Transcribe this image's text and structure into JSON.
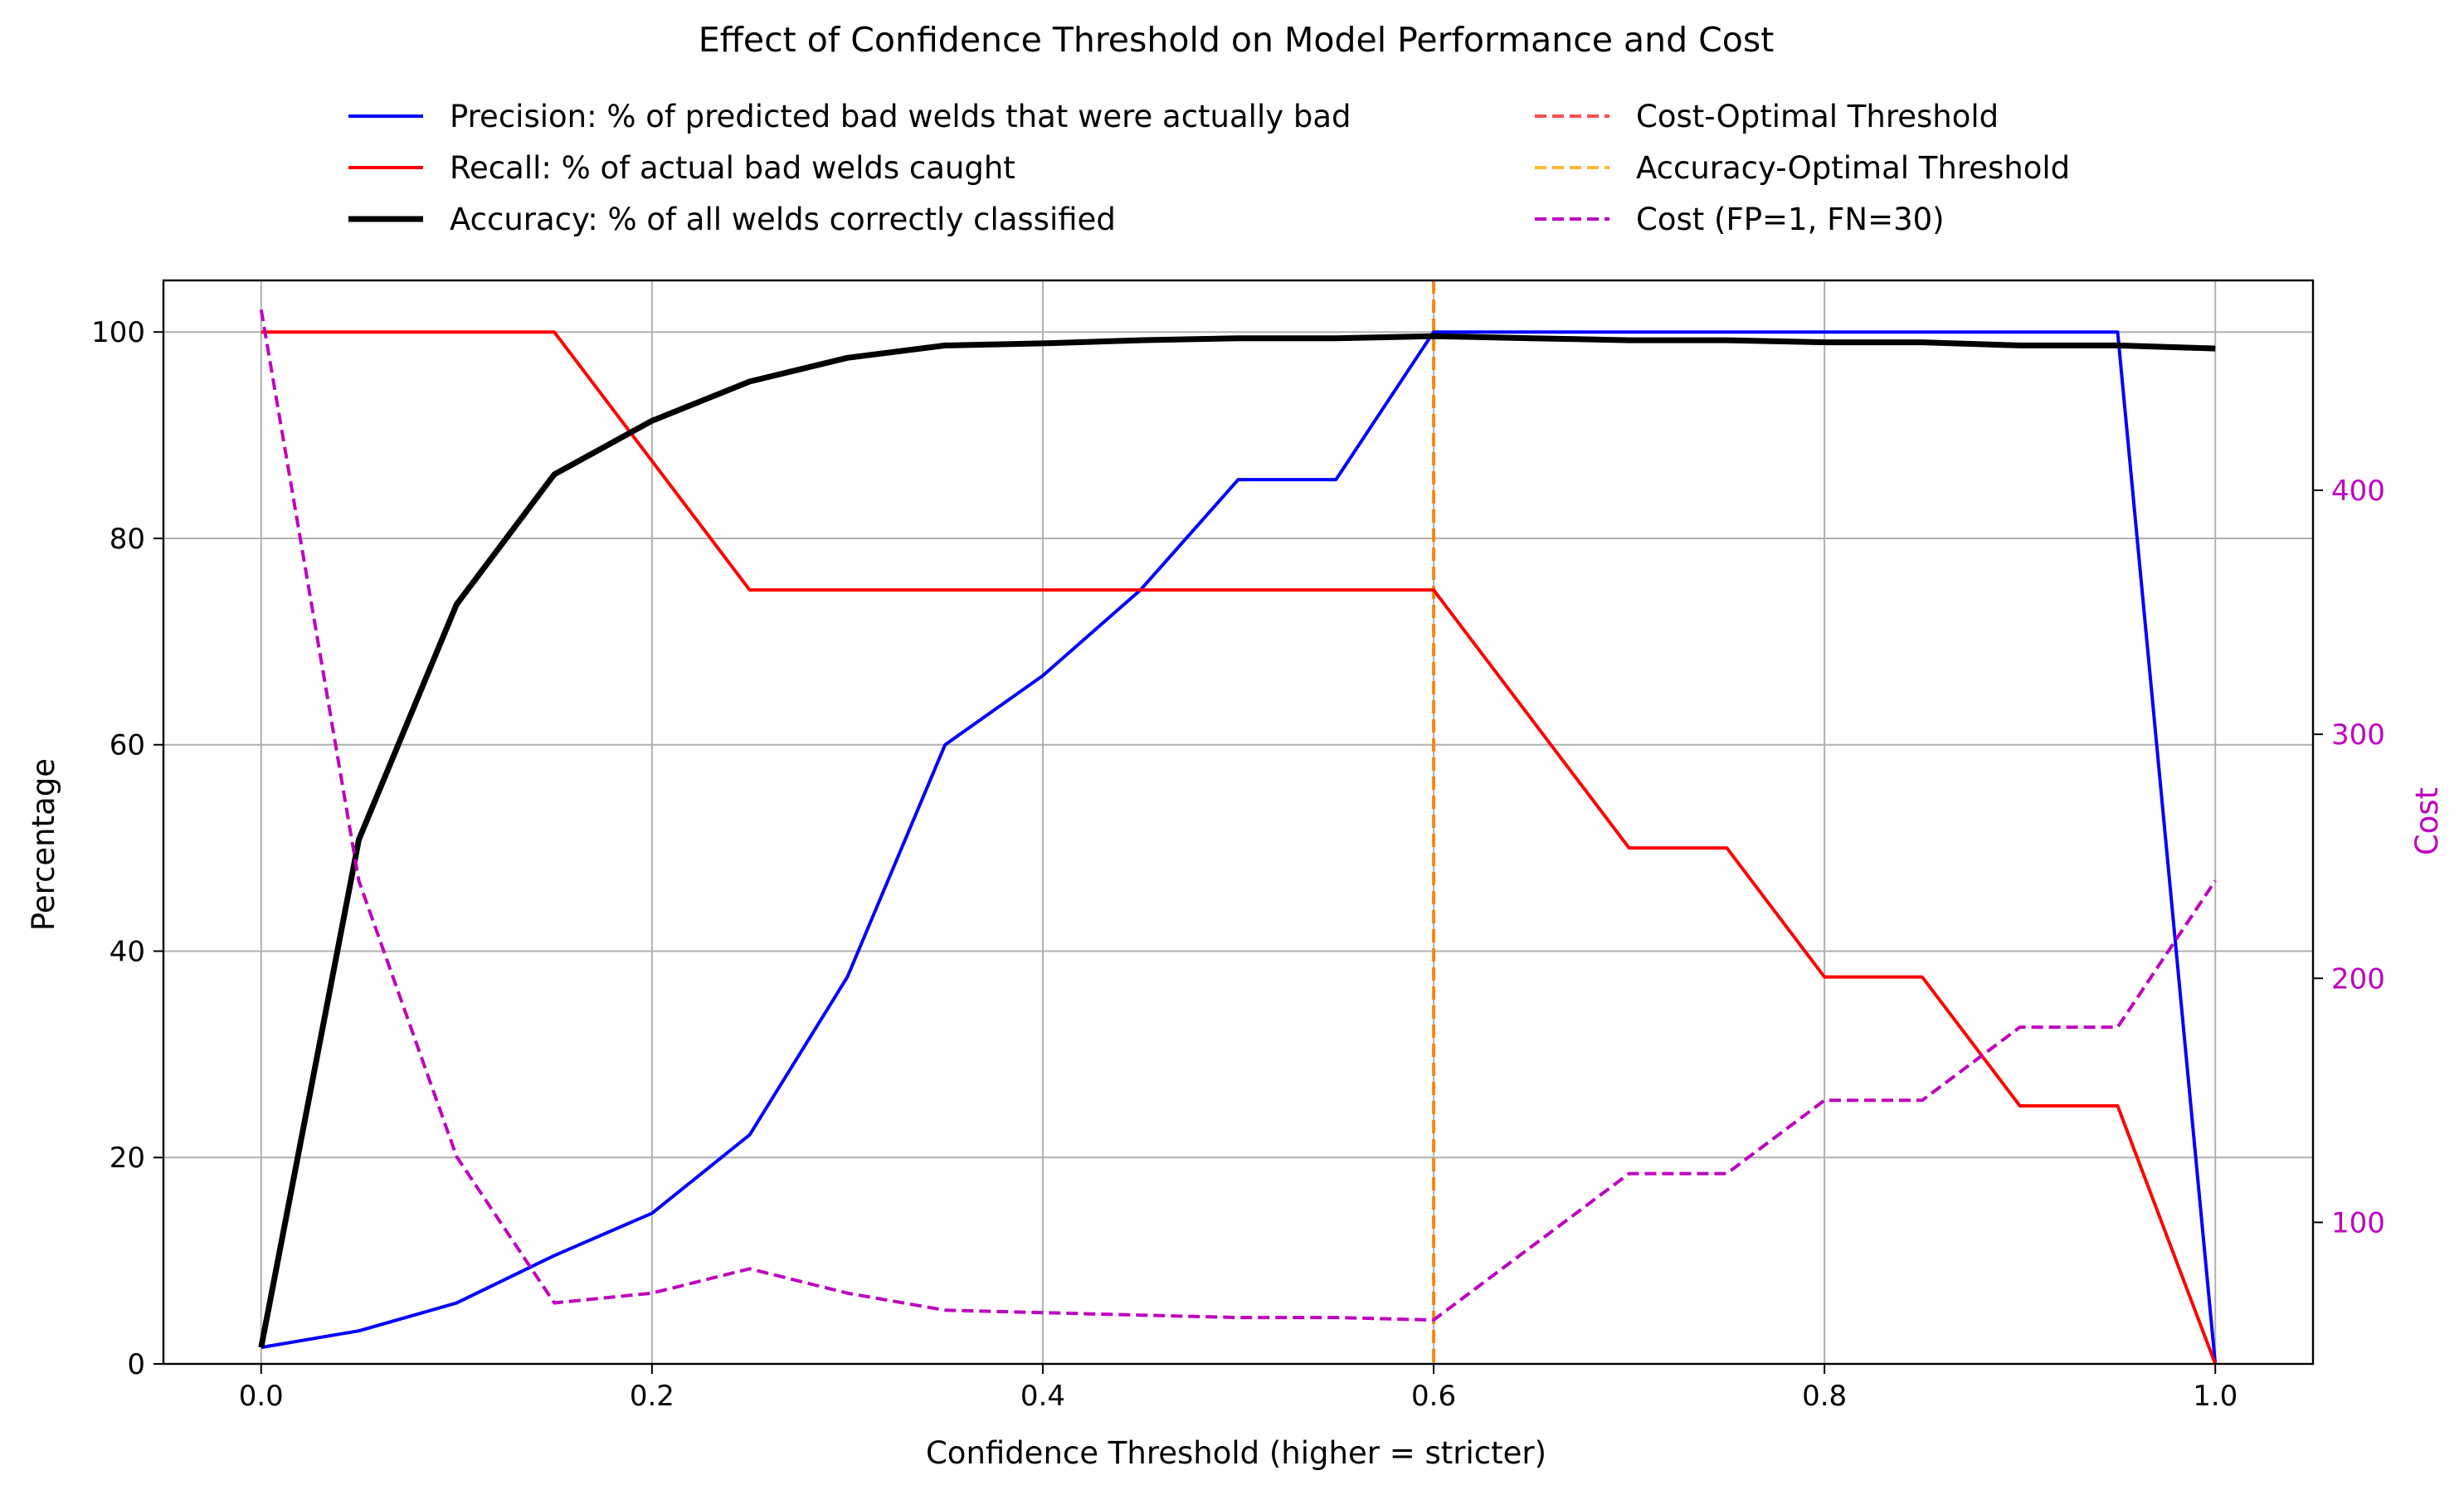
{
  "chart_data": {
    "type": "line",
    "title": "Effect of Confidence Threshold on Model Performance and Cost",
    "xlabel": "Confidence Threshold (higher = stricter)",
    "ylabel": "Percentage",
    "y2label": "Cost",
    "xlim": [
      -0.05,
      1.05
    ],
    "ylim": [
      0,
      105
    ],
    "y2lim": [
      42,
      486
    ],
    "x_ticks": [
      "0.0",
      "0.2",
      "0.4",
      "0.6",
      "0.8",
      "1.0"
    ],
    "y_ticks": [
      "0",
      "20",
      "40",
      "60",
      "80",
      "100"
    ],
    "y2_ticks": [
      "100",
      "200",
      "300",
      "400"
    ],
    "grid": true,
    "legend_placement": "top, above plot, two columns",
    "x": [
      0.0,
      0.05,
      0.1,
      0.15,
      0.2,
      0.25,
      0.3,
      0.35,
      0.4,
      0.45,
      0.5,
      0.55,
      0.6,
      0.65,
      0.7,
      0.75,
      0.8,
      0.85,
      0.9,
      0.95,
      1.0
    ],
    "series": [
      {
        "name": "Precision: % of predicted bad welds that were actually bad",
        "axis": "left",
        "color": "#0000ff",
        "style": "solid",
        "values": [
          1.6,
          3.2,
          5.9,
          10.5,
          14.6,
          22.2,
          37.5,
          60.0,
          66.7,
          75.0,
          85.7,
          85.7,
          100,
          100,
          100,
          100,
          100,
          100,
          100,
          100,
          0
        ]
      },
      {
        "name": "Recall: % of actual bad welds caught",
        "axis": "left",
        "color": "#ff0000",
        "style": "solid",
        "values": [
          100,
          100,
          100,
          100,
          87.5,
          75,
          75,
          75,
          75,
          75,
          75,
          75,
          75,
          62.5,
          50,
          50,
          37.5,
          37.5,
          25,
          25,
          0
        ]
      },
      {
        "name": "Accuracy: % of all welds correctly classified",
        "axis": "left",
        "color": "#000000",
        "style": "solid-thick",
        "values": [
          1.6,
          50.8,
          73.6,
          86.2,
          91.4,
          95.2,
          97.5,
          98.7,
          98.9,
          99.2,
          99.4,
          99.4,
          99.6,
          99.4,
          99.2,
          99.2,
          99.0,
          99.0,
          98.7,
          98.7,
          98.4
        ]
      },
      {
        "name": "Cost (FP=1, FN=30)",
        "axis": "right",
        "color": "#bf00bf",
        "style": "dashed",
        "values": [
          474,
          240,
          127,
          67,
          71,
          81,
          71,
          64,
          63,
          62,
          61,
          61,
          60,
          90,
          120,
          120,
          150,
          150,
          180,
          180,
          240
        ]
      }
    ],
    "vlines": [
      {
        "name": "Cost-Optimal Threshold",
        "x": 0.6,
        "color": "#ff4d4d",
        "style": "dashed"
      },
      {
        "name": "Accuracy-Optimal Threshold",
        "x": 0.6,
        "color": "#ffb833",
        "style": "dashed"
      }
    ],
    "overlap_color": "#ff8000"
  }
}
